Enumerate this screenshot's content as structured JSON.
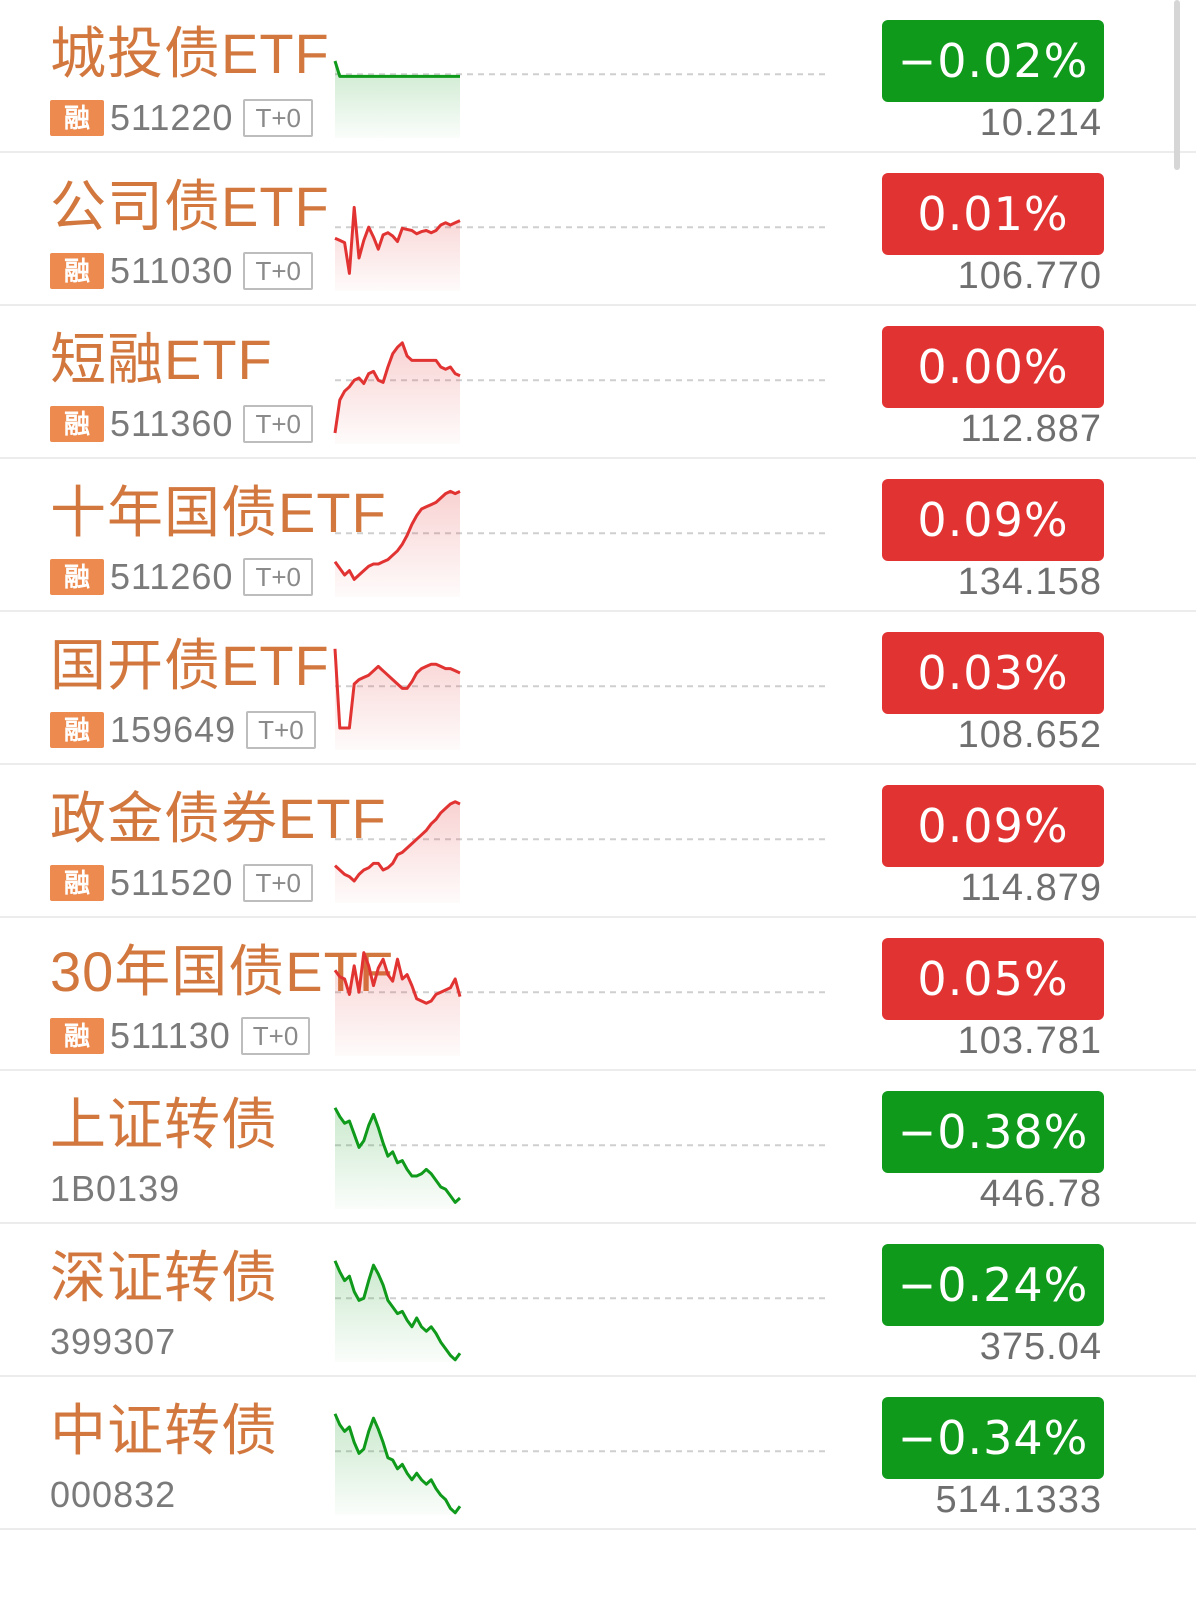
{
  "colors": {
    "up": "#e23333",
    "down": "#0f9a1b",
    "name": "#d2783f",
    "badge": "#ec8a4f"
  },
  "rows": [
    {
      "name": "城投债ETF",
      "badge": "融",
      "code": "511220",
      "tplus": "T+0",
      "change": "-0.02%",
      "price": "10.214",
      "direction": "down",
      "spark": [
        70,
        56,
        56,
        56,
        56,
        56,
        56,
        56,
        56,
        56,
        56,
        56,
        56,
        56,
        56,
        56,
        56,
        56,
        56,
        56,
        56,
        56,
        56,
        56,
        56,
        56,
        56
      ]
    },
    {
      "name": "公司债ETF",
      "badge": "融",
      "code": "511030",
      "tplus": "T+0",
      "change": "0.01%",
      "price": "106.770",
      "direction": "up",
      "spark": [
        48,
        46,
        44,
        16,
        76,
        30,
        46,
        58,
        49,
        38,
        51,
        53,
        50,
        45,
        57,
        56,
        55,
        52,
        54,
        55,
        53,
        55,
        60,
        62,
        60,
        62,
        64
      ]
    },
    {
      "name": "短融ETF",
      "badge": "融",
      "code": "511360",
      "tplus": "T+0",
      "change": "0.00%",
      "price": "112.887",
      "direction": "up",
      "spark": [
        10,
        40,
        48,
        52,
        58,
        60,
        55,
        64,
        66,
        58,
        56,
        70,
        82,
        88,
        92,
        80,
        76,
        76,
        76,
        76,
        76,
        76,
        70,
        68,
        70,
        64,
        62
      ]
    },
    {
      "name": "十年国债ETF",
      "badge": "融",
      "code": "511260",
      "tplus": "T+0",
      "change": "0.09%",
      "price": "134.158",
      "direction": "up",
      "spark": [
        32,
        26,
        20,
        24,
        16,
        20,
        24,
        28,
        30,
        30,
        32,
        34,
        38,
        42,
        48,
        56,
        66,
        74,
        80,
        82,
        84,
        86,
        90,
        94,
        96,
        94,
        96
      ]
    },
    {
      "name": "国开债ETF",
      "badge": "融",
      "code": "159649",
      "tplus": "T+0",
      "change": "0.03%",
      "price": "108.652",
      "direction": "up",
      "spark": [
        92,
        20,
        20,
        20,
        60,
        64,
        66,
        68,
        72,
        76,
        72,
        68,
        64,
        60,
        56,
        56,
        62,
        70,
        74,
        76,
        78,
        78,
        76,
        74,
        74,
        72,
        70
      ]
    },
    {
      "name": "政金债券ETF",
      "badge": "融",
      "code": "511520",
      "tplus": "T+0",
      "change": "0.09%",
      "price": "114.879",
      "direction": "up",
      "spark": [
        34,
        30,
        26,
        24,
        20,
        26,
        30,
        32,
        36,
        36,
        30,
        32,
        36,
        44,
        46,
        50,
        54,
        58,
        62,
        66,
        72,
        76,
        82,
        86,
        90,
        92,
        90
      ]
    },
    {
      "name": "30年国债ETF",
      "badge": "融",
      "code": "511130",
      "tplus": "T+0",
      "change": "0.05%",
      "price": "103.781",
      "direction": "up",
      "spark": [
        78,
        72,
        70,
        56,
        82,
        58,
        94,
        82,
        64,
        80,
        88,
        74,
        68,
        88,
        70,
        74,
        64,
        52,
        50,
        48,
        50,
        56,
        58,
        60,
        62,
        70,
        54
      ]
    },
    {
      "name": "上证转债",
      "badge": "",
      "code": "1B0139",
      "tplus": "",
      "change": "-0.38%",
      "price": "446.78",
      "direction": "down",
      "spark": [
        92,
        84,
        78,
        80,
        68,
        56,
        62,
        76,
        86,
        74,
        60,
        48,
        52,
        42,
        44,
        36,
        30,
        30,
        32,
        36,
        32,
        26,
        20,
        18,
        12,
        6,
        10
      ]
    },
    {
      "name": "深证转债",
      "badge": "",
      "code": "399307",
      "tplus": "",
      "change": "-0.24%",
      "price": "375.04",
      "direction": "down",
      "spark": [
        92,
        82,
        74,
        78,
        64,
        56,
        58,
        74,
        88,
        80,
        70,
        56,
        50,
        44,
        46,
        38,
        32,
        40,
        32,
        28,
        32,
        26,
        18,
        12,
        6,
        2,
        8
      ]
    },
    {
      "name": "中证转债",
      "badge": "",
      "code": "000832",
      "tplus": "",
      "change": "-0.34%",
      "price": "514.1333",
      "direction": "down",
      "spark": [
        92,
        82,
        76,
        80,
        66,
        56,
        60,
        76,
        88,
        78,
        66,
        52,
        50,
        42,
        46,
        38,
        32,
        38,
        32,
        28,
        32,
        24,
        18,
        14,
        6,
        2,
        8
      ]
    }
  ]
}
